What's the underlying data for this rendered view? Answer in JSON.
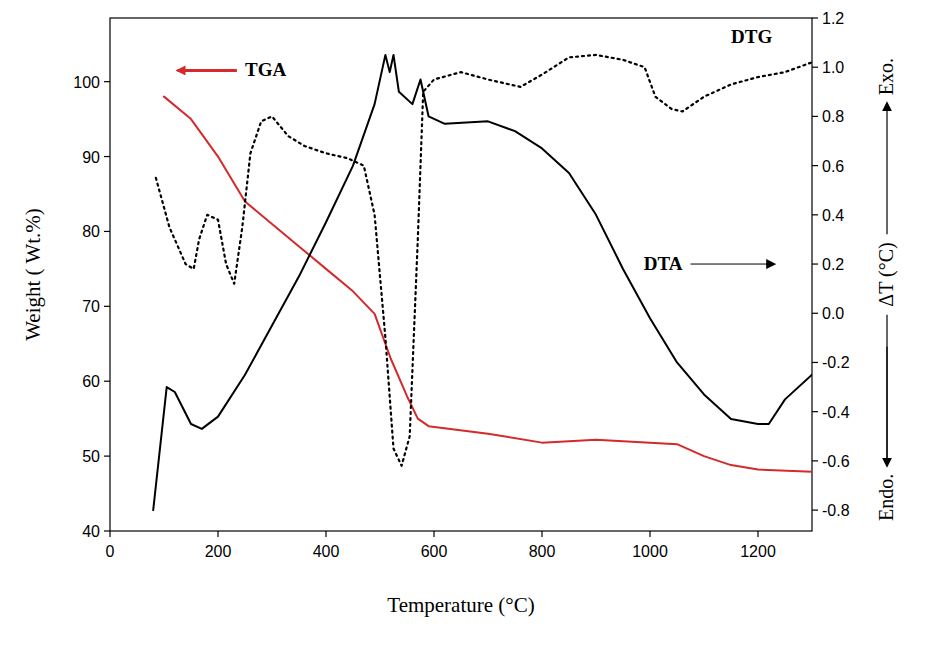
{
  "chart_data": {
    "type": "line",
    "x_label": "Temperature (°C)",
    "y_label": "Weight ( Wt.%)",
    "y2_label": "ΔT (°C)",
    "y2_label_low": "Endo.",
    "y2_label_high": "Exo.",
    "xlim": [
      0,
      1300
    ],
    "xticks": [
      0,
      200,
      400,
      600,
      800,
      1000,
      1200
    ],
    "ylim": [
      40,
      108.5
    ],
    "yticks": [
      40,
      50,
      60,
      70,
      80,
      90,
      100
    ],
    "y2lim": [
      -0.885,
      1.2
    ],
    "y2ticks": [
      -0.8,
      -0.6,
      -0.4,
      -0.2,
      {
        "value": 0,
        "label": "0.0"
      },
      0.2,
      0.4,
      0.6,
      0.8,
      {
        "value": 1,
        "label": "1.0"
      },
      1.2
    ],
    "series": [
      {
        "name": "TGA",
        "color": "#d42a2a",
        "line_style": "solid",
        "x": [
          100,
          150,
          200,
          250,
          300,
          350,
          400,
          450,
          490,
          520,
          550,
          570,
          590,
          700,
          800,
          900,
          1000,
          1050,
          1100,
          1150,
          1200,
          1300
        ],
        "values": [
          98,
          95,
          90,
          84,
          81,
          78,
          75,
          72,
          69,
          63,
          58,
          55,
          54,
          53,
          51.8,
          52.2,
          51.8,
          51.6,
          50,
          48.8,
          48.2,
          47.9
        ]
      },
      {
        "name": "DTA",
        "color": "#000000",
        "line_style": "solid",
        "axis": "y2",
        "x": [
          80,
          105,
          120,
          150,
          170,
          200,
          250,
          300,
          350,
          400,
          450,
          490,
          510,
          518,
          525,
          535,
          560,
          575,
          590,
          620,
          700,
          750,
          800,
          850,
          900,
          950,
          1000,
          1050,
          1100,
          1150,
          1200,
          1220,
          1250,
          1300
        ],
        "values": [
          -0.8,
          -0.3,
          -0.32,
          -0.45,
          -0.47,
          -0.42,
          -0.25,
          -0.05,
          0.15,
          0.37,
          0.6,
          0.85,
          1.05,
          0.98,
          1.05,
          0.9,
          0.85,
          0.95,
          0.8,
          0.77,
          0.78,
          0.74,
          0.67,
          0.57,
          0.4,
          0.18,
          -0.02,
          -0.2,
          -0.33,
          -0.43,
          -0.45,
          -0.45,
          -0.35,
          -0.25
        ]
      },
      {
        "name": "DTG",
        "color": "#000000",
        "line_style": "dotted",
        "axis": "y2",
        "x": [
          85,
          110,
          140,
          155,
          165,
          180,
          200,
          215,
          230,
          245,
          260,
          280,
          300,
          330,
          360,
          400,
          440,
          470,
          490,
          510,
          525,
          540,
          555,
          570,
          580,
          600,
          650,
          700,
          760,
          800,
          850,
          900,
          950,
          990,
          1010,
          1040,
          1060,
          1100,
          1150,
          1200,
          1250,
          1300
        ],
        "values": [
          0.55,
          0.35,
          0.2,
          0.18,
          0.3,
          0.4,
          0.38,
          0.2,
          0.12,
          0.35,
          0.65,
          0.78,
          0.8,
          0.72,
          0.68,
          0.65,
          0.63,
          0.6,
          0.4,
          -0.1,
          -0.55,
          -0.62,
          -0.5,
          0.3,
          0.9,
          0.95,
          0.98,
          0.95,
          0.92,
          0.97,
          1.04,
          1.05,
          1.03,
          1.0,
          0.88,
          0.83,
          0.82,
          0.88,
          0.93,
          0.96,
          0.98,
          1.02
        ]
      }
    ]
  }
}
